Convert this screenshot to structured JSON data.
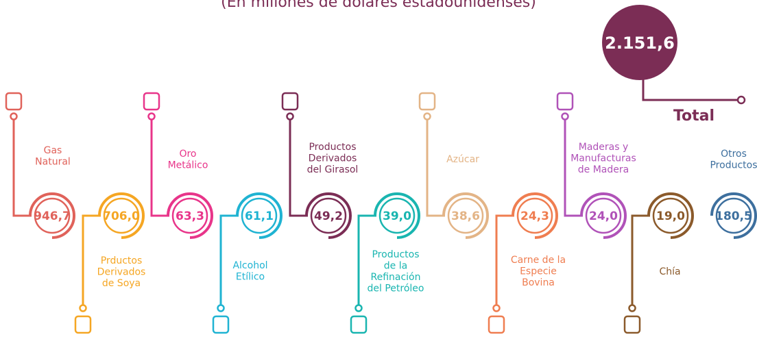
{
  "subtitle": "(En millones de dólares estadounidenses)",
  "total": {
    "value": "2.151,6",
    "label": "Total",
    "color": "#7b2d55"
  },
  "items": [
    {
      "label": [
        "Gas",
        "Natural"
      ],
      "value": "946,7",
      "color": "#e0625a",
      "side": "top"
    },
    {
      "label": [
        "Prductos",
        "Derivados",
        "de Soya"
      ],
      "value": "706,0",
      "color": "#f5a623",
      "side": "bottom"
    },
    {
      "label": [
        "Oro",
        "Metálico"
      ],
      "value": "63,3",
      "color": "#e8358a",
      "side": "top"
    },
    {
      "label": [
        "Alcohol",
        "Etílico"
      ],
      "value": "61,1",
      "color": "#1fb3d2",
      "side": "bottom"
    },
    {
      "label": [
        "Productos",
        "Derivados",
        "del Girasol"
      ],
      "value": "49,2",
      "color": "#7b2d55",
      "side": "top"
    },
    {
      "label": [
        "Productos",
        "de la",
        "Refinación",
        "del Petróleo"
      ],
      "value": "39,0",
      "color": "#19b5b0",
      "side": "bottom"
    },
    {
      "label": [
        "Azúcar"
      ],
      "value": "38,6",
      "color": "#e3b486",
      "side": "top"
    },
    {
      "label": [
        "Carne de la",
        "Especie",
        "Bovina"
      ],
      "value": "24,3",
      "color": "#ef7d50",
      "side": "bottom"
    },
    {
      "label": [
        "Maderas y",
        "Manufacturas",
        "de Madera"
      ],
      "value": "24,0",
      "color": "#b052b8",
      "side": "top"
    },
    {
      "label": [
        "Chía"
      ],
      "value": "19,0",
      "color": "#8b5a2b",
      "side": "bottom"
    },
    {
      "label": [
        "Otros",
        "Productos"
      ],
      "value": "180,5",
      "color": "#3d6f9e",
      "side": "none"
    }
  ]
}
